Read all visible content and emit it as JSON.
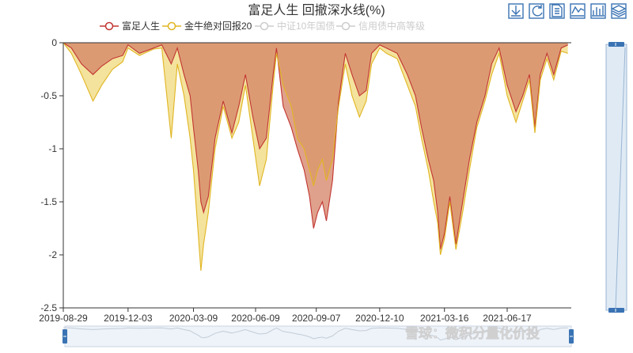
{
  "chart_data": {
    "type": "area",
    "title": "富足人生 回撤深水线(%)",
    "y_ticks": [
      "0",
      "-0.5",
      "-1",
      "-1.5",
      "-2",
      "-2.5"
    ],
    "ylim": [
      -2.5,
      0
    ],
    "x_ticks": [
      "2019-08-29",
      "2019-12-03",
      "2020-03-09",
      "2020-06-09",
      "2020-09-07",
      "2020-12-10",
      "2021-03-16",
      "2021-06-17"
    ],
    "series": [
      {
        "name": "富足人生",
        "color": "#c23531",
        "fill": "#d48265",
        "visible": true,
        "points": [
          [
            "2019-08-29",
            0
          ],
          [
            "2019-09-10",
            -0.05
          ],
          [
            "2019-09-25",
            -0.2
          ],
          [
            "2019-10-12",
            -0.3
          ],
          [
            "2019-10-25",
            -0.22
          ],
          [
            "2019-11-10",
            -0.15
          ],
          [
            "2019-11-25",
            -0.12
          ],
          [
            "2019-12-03",
            -0.02
          ],
          [
            "2019-12-20",
            -0.1
          ],
          [
            "2020-01-10",
            -0.05
          ],
          [
            "2020-01-22",
            -0.02
          ],
          [
            "2020-02-05",
            -0.2
          ],
          [
            "2020-02-14",
            -0.05
          ],
          [
            "2020-02-24",
            -0.3
          ],
          [
            "2020-03-04",
            -0.5
          ],
          [
            "2020-03-09",
            -0.8
          ],
          [
            "2020-03-16",
            -1.2
          ],
          [
            "2020-03-20",
            -1.5
          ],
          [
            "2020-03-24",
            -1.6
          ],
          [
            "2020-03-31",
            -1.45
          ],
          [
            "2020-04-10",
            -0.9
          ],
          [
            "2020-04-22",
            -0.55
          ],
          [
            "2020-05-05",
            -0.85
          ],
          [
            "2020-05-15",
            -0.6
          ],
          [
            "2020-05-25",
            -0.3
          ],
          [
            "2020-06-05",
            -0.7
          ],
          [
            "2020-06-15",
            -1.0
          ],
          [
            "2020-06-25",
            -0.9
          ],
          [
            "2020-07-05",
            -0.3
          ],
          [
            "2020-07-10",
            -0.05
          ],
          [
            "2020-07-20",
            -0.6
          ],
          [
            "2020-08-01",
            -0.8
          ],
          [
            "2020-08-10",
            -1.0
          ],
          [
            "2020-08-20",
            -1.2
          ],
          [
            "2020-08-28",
            -1.45
          ],
          [
            "2020-09-03",
            -1.75
          ],
          [
            "2020-09-09",
            -1.6
          ],
          [
            "2020-09-16",
            -1.5
          ],
          [
            "2020-09-22",
            -1.68
          ],
          [
            "2020-10-01",
            -1.3
          ],
          [
            "2020-10-10",
            -0.55
          ],
          [
            "2020-10-20",
            -0.1
          ],
          [
            "2020-10-30",
            -0.3
          ],
          [
            "2020-11-10",
            -0.5
          ],
          [
            "2020-11-20",
            -0.45
          ],
          [
            "2020-11-28",
            -0.1
          ],
          [
            "2020-12-10",
            -0.02
          ],
          [
            "2020-12-20",
            -0.05
          ],
          [
            "2021-01-05",
            -0.1
          ],
          [
            "2021-01-20",
            -0.3
          ],
          [
            "2021-02-01",
            -0.5
          ],
          [
            "2021-02-10",
            -0.8
          ],
          [
            "2021-02-20",
            -1.1
          ],
          [
            "2021-02-28",
            -1.3
          ],
          [
            "2021-03-06",
            -1.6
          ],
          [
            "2021-03-10",
            -1.95
          ],
          [
            "2021-03-16",
            -1.8
          ],
          [
            "2021-03-24",
            -1.45
          ],
          [
            "2021-04-02",
            -1.9
          ],
          [
            "2021-04-12",
            -1.5
          ],
          [
            "2021-04-22",
            -1.1
          ],
          [
            "2021-05-03",
            -0.75
          ],
          [
            "2021-05-15",
            -0.5
          ],
          [
            "2021-05-25",
            -0.2
          ],
          [
            "2021-06-05",
            -0.05
          ],
          [
            "2021-06-17",
            -0.4
          ],
          [
            "2021-06-30",
            -0.65
          ],
          [
            "2021-07-10",
            -0.5
          ],
          [
            "2021-07-20",
            -0.3
          ],
          [
            "2021-07-28",
            -0.8
          ],
          [
            "2021-08-05",
            -0.3
          ],
          [
            "2021-08-15",
            -0.1
          ],
          [
            "2021-08-25",
            -0.3
          ],
          [
            "2021-09-05",
            -0.05
          ],
          [
            "2021-09-15",
            -0.02
          ]
        ]
      },
      {
        "name": "金牛绝对回报20",
        "color": "#e0b522",
        "fill": "#f0d97c",
        "visible": true,
        "points": [
          [
            "2019-08-29",
            0
          ],
          [
            "2019-09-10",
            -0.1
          ],
          [
            "2019-09-25",
            -0.3
          ],
          [
            "2019-10-12",
            -0.55
          ],
          [
            "2019-10-25",
            -0.4
          ],
          [
            "2019-11-10",
            -0.25
          ],
          [
            "2019-11-25",
            -0.18
          ],
          [
            "2019-12-03",
            -0.05
          ],
          [
            "2019-12-20",
            -0.12
          ],
          [
            "2020-01-10",
            -0.06
          ],
          [
            "2020-01-22",
            -0.05
          ],
          [
            "2020-02-05",
            -0.9
          ],
          [
            "2020-02-14",
            -0.2
          ],
          [
            "2020-02-24",
            -0.5
          ],
          [
            "2020-03-04",
            -0.9
          ],
          [
            "2020-03-09",
            -1.2
          ],
          [
            "2020-03-16",
            -1.8
          ],
          [
            "2020-03-20",
            -2.15
          ],
          [
            "2020-03-24",
            -1.9
          ],
          [
            "2020-03-31",
            -1.6
          ],
          [
            "2020-04-10",
            -1.0
          ],
          [
            "2020-04-22",
            -0.6
          ],
          [
            "2020-05-05",
            -0.9
          ],
          [
            "2020-05-15",
            -0.75
          ],
          [
            "2020-05-25",
            -0.4
          ],
          [
            "2020-06-05",
            -0.9
          ],
          [
            "2020-06-15",
            -1.35
          ],
          [
            "2020-06-25",
            -1.1
          ],
          [
            "2020-07-05",
            -0.4
          ],
          [
            "2020-07-10",
            -0.1
          ],
          [
            "2020-07-20",
            -0.4
          ],
          [
            "2020-08-01",
            -0.6
          ],
          [
            "2020-08-10",
            -0.9
          ],
          [
            "2020-08-20",
            -1.0
          ],
          [
            "2020-08-28",
            -1.2
          ],
          [
            "2020-09-03",
            -1.35
          ],
          [
            "2020-09-09",
            -1.2
          ],
          [
            "2020-09-16",
            -1.1
          ],
          [
            "2020-09-22",
            -1.3
          ],
          [
            "2020-10-01",
            -1.1
          ],
          [
            "2020-10-10",
            -0.6
          ],
          [
            "2020-10-20",
            -0.2
          ],
          [
            "2020-10-30",
            -0.5
          ],
          [
            "2020-11-10",
            -0.7
          ],
          [
            "2020-11-20",
            -0.55
          ],
          [
            "2020-11-28",
            -0.2
          ],
          [
            "2020-12-10",
            -0.05
          ],
          [
            "2020-12-20",
            -0.1
          ],
          [
            "2021-01-05",
            -0.15
          ],
          [
            "2021-01-20",
            -0.4
          ],
          [
            "2021-02-01",
            -0.6
          ],
          [
            "2021-02-10",
            -0.9
          ],
          [
            "2021-02-20",
            -1.2
          ],
          [
            "2021-02-28",
            -1.5
          ],
          [
            "2021-03-06",
            -1.7
          ],
          [
            "2021-03-10",
            -2.0
          ],
          [
            "2021-03-16",
            -1.85
          ],
          [
            "2021-03-24",
            -1.5
          ],
          [
            "2021-04-02",
            -1.95
          ],
          [
            "2021-04-12",
            -1.6
          ],
          [
            "2021-04-22",
            -1.2
          ],
          [
            "2021-05-03",
            -0.8
          ],
          [
            "2021-05-15",
            -0.55
          ],
          [
            "2021-05-25",
            -0.3
          ],
          [
            "2021-06-05",
            -0.1
          ],
          [
            "2021-06-17",
            -0.5
          ],
          [
            "2021-06-30",
            -0.75
          ],
          [
            "2021-07-10",
            -0.55
          ],
          [
            "2021-07-20",
            -0.35
          ],
          [
            "2021-07-28",
            -0.85
          ],
          [
            "2021-08-05",
            -0.35
          ],
          [
            "2021-08-15",
            -0.15
          ],
          [
            "2021-08-25",
            -0.35
          ],
          [
            "2021-09-05",
            -0.08
          ],
          [
            "2021-09-15",
            -0.1
          ]
        ]
      },
      {
        "name": "中证10年国债",
        "color": "#cccccc",
        "visible": false
      },
      {
        "name": "信用债中高等级",
        "color": "#cccccc",
        "visible": false
      }
    ]
  },
  "toolbox": [
    "download-icon",
    "refresh-icon",
    "data-view-icon",
    "line-chart-icon",
    "bar-chart-icon",
    "stack-icon"
  ],
  "watermark": "雪球：微积分量化价投",
  "colors": {
    "axis": "#333333",
    "overlap_fill": "#e0a040",
    "slider_fill": "#dfeaf5",
    "slider_border": "#9bb6d2",
    "slider_handle": "#3a73b4",
    "toolbar_icon": "#3a73b4"
  }
}
